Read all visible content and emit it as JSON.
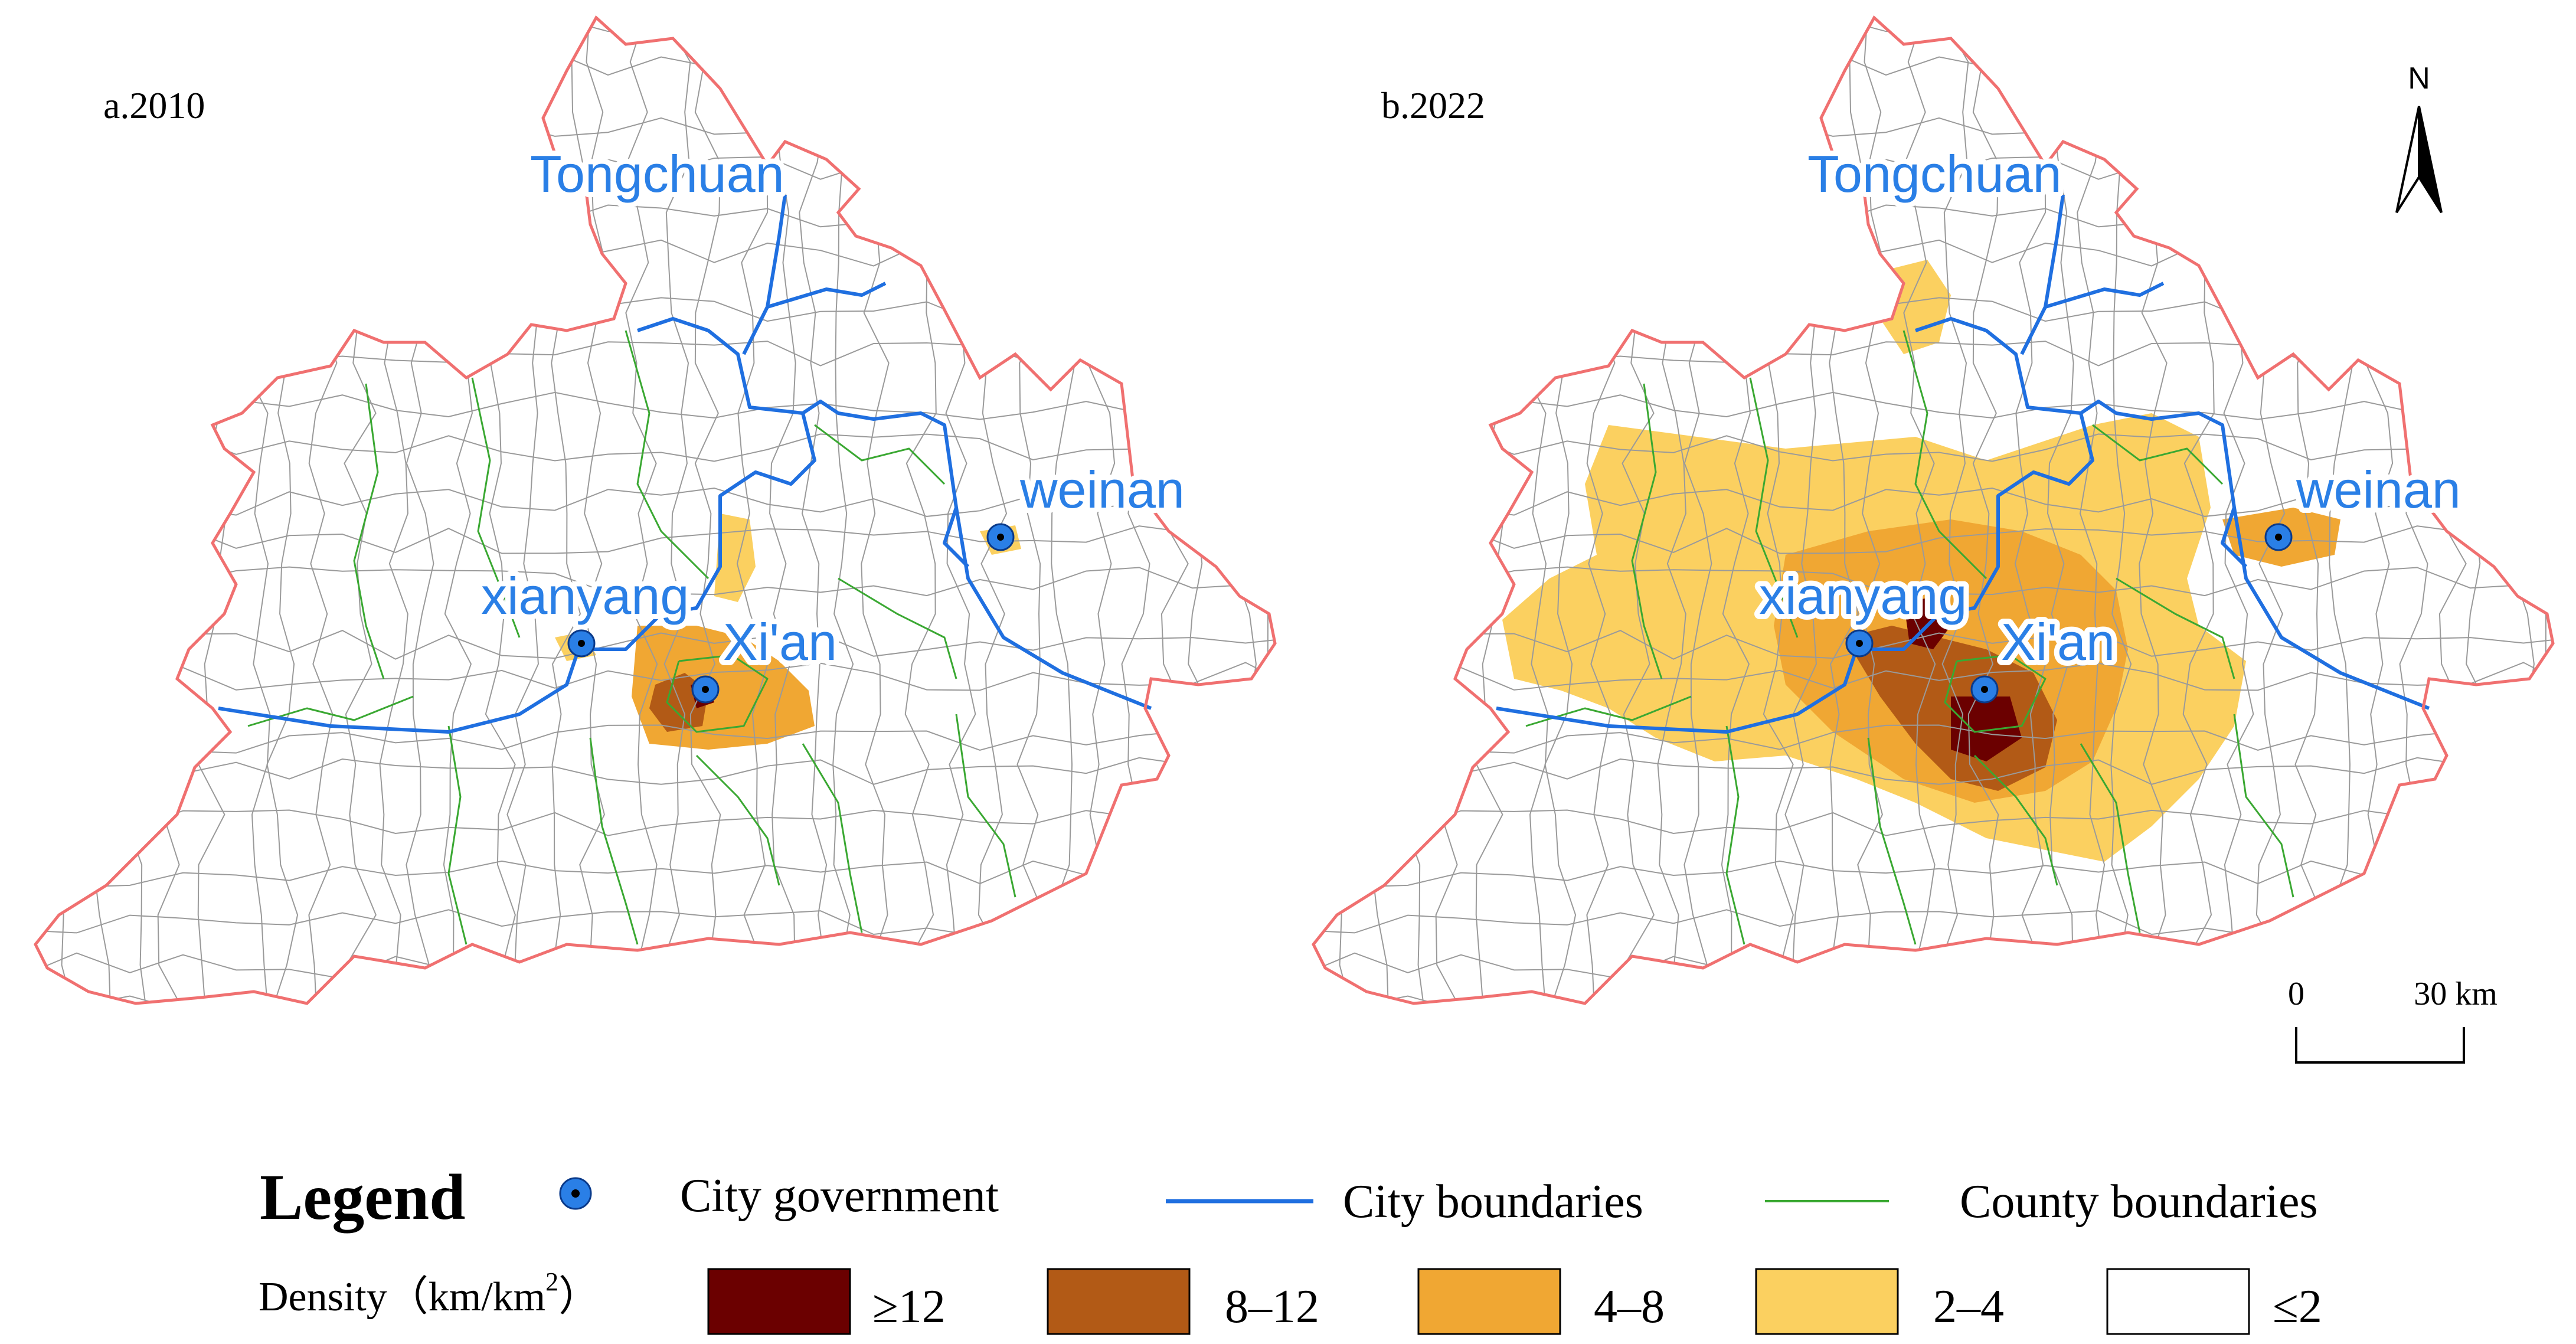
{
  "panels": [
    {
      "title": "a.2010"
    },
    {
      "title": "b.2022"
    }
  ],
  "city_labels": {
    "tongchuan": "Tongchuan",
    "weinan": "weinan",
    "xianyang": "xianyang",
    "xian": "Xi'an"
  },
  "north_arrow": {
    "label": "N"
  },
  "scale_bar": {
    "start": "0",
    "end": "30 km"
  },
  "legend": {
    "title": "Legend",
    "city_government": "City government",
    "city_boundaries": "City boundaries",
    "county_boundaries": "County boundaries",
    "density_label": "Density（km/km",
    "density_sup": "2",
    "density_close": "）",
    "classes": [
      {
        "label": "≥12",
        "color": "#6b0000"
      },
      {
        "label": "8–12",
        "color": "#b25a16"
      },
      {
        "label": "4–8",
        "color": "#f0a733"
      },
      {
        "label": "2–4",
        "color": "#fbd060"
      },
      {
        "label": "≤2",
        "color": "#ffffff"
      }
    ]
  },
  "colors": {
    "outer_boundary": "#f07070",
    "city_boundary": "#1f6fe0",
    "county_boundary": "#3aa832",
    "city_marker": "#2a7fe6"
  }
}
